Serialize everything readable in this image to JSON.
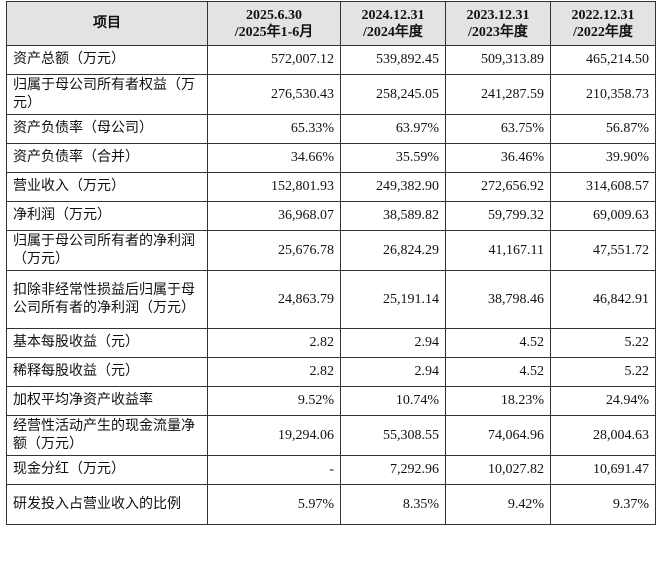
{
  "table": {
    "headers": [
      {
        "line1": "项目",
        "line2": ""
      },
      {
        "line1": "2025.6.30",
        "line2": "/2025年1-6月"
      },
      {
        "line1": "2024.12.31",
        "line2": "/2024年度"
      },
      {
        "line1": "2023.12.31",
        "line2": "/2023年度"
      },
      {
        "line1": "2022.12.31",
        "line2": "/2022年度"
      }
    ],
    "rows": [
      {
        "label": "资产总额（万元）",
        "values": [
          "572,007.12",
          "539,892.45",
          "509,313.89",
          "465,214.50"
        ]
      },
      {
        "label": "归属于母公司所有者权益（万元）",
        "values": [
          "276,530.43",
          "258,245.05",
          "241,287.59",
          "210,358.73"
        ]
      },
      {
        "label": "资产负债率（母公司）",
        "values": [
          "65.33%",
          "63.97%",
          "63.75%",
          "56.87%"
        ]
      },
      {
        "label": "资产负债率（合并）",
        "values": [
          "34.66%",
          "35.59%",
          "36.46%",
          "39.90%"
        ]
      },
      {
        "label": "营业收入（万元）",
        "values": [
          "152,801.93",
          "249,382.90",
          "272,656.92",
          "314,608.57"
        ]
      },
      {
        "label": "净利润（万元）",
        "values": [
          "36,968.07",
          "38,589.82",
          "59,799.32",
          "69,009.63"
        ]
      },
      {
        "label": "归属于母公司所有者的净利润（万元）",
        "values": [
          "25,676.78",
          "26,824.29",
          "41,167.11",
          "47,551.72"
        ]
      },
      {
        "label": "扣除非经常性损益后归属于母公司所有者的净利润（万元）",
        "values": [
          "24,863.79",
          "25,191.14",
          "38,798.46",
          "46,842.91"
        ]
      },
      {
        "label": "基本每股收益（元）",
        "values": [
          "2.82",
          "2.94",
          "4.52",
          "5.22"
        ]
      },
      {
        "label": "稀释每股收益（元）",
        "values": [
          "2.82",
          "2.94",
          "4.52",
          "5.22"
        ]
      },
      {
        "label": "加权平均净资产收益率",
        "values": [
          "9.52%",
          "10.74%",
          "18.23%",
          "24.94%"
        ]
      },
      {
        "label": "经营性活动产生的现金流量净额（万元）",
        "values": [
          "19,294.06",
          "55,308.55",
          "74,064.96",
          "28,004.63"
        ]
      },
      {
        "label": "现金分红（万元）",
        "values": [
          "-",
          "7,292.96",
          "10,027.82",
          "10,691.47"
        ]
      },
      {
        "label": "研发投入占营业收入的比例",
        "values": [
          "5.97%",
          "8.35%",
          "9.42%",
          "9.37%"
        ]
      }
    ]
  }
}
